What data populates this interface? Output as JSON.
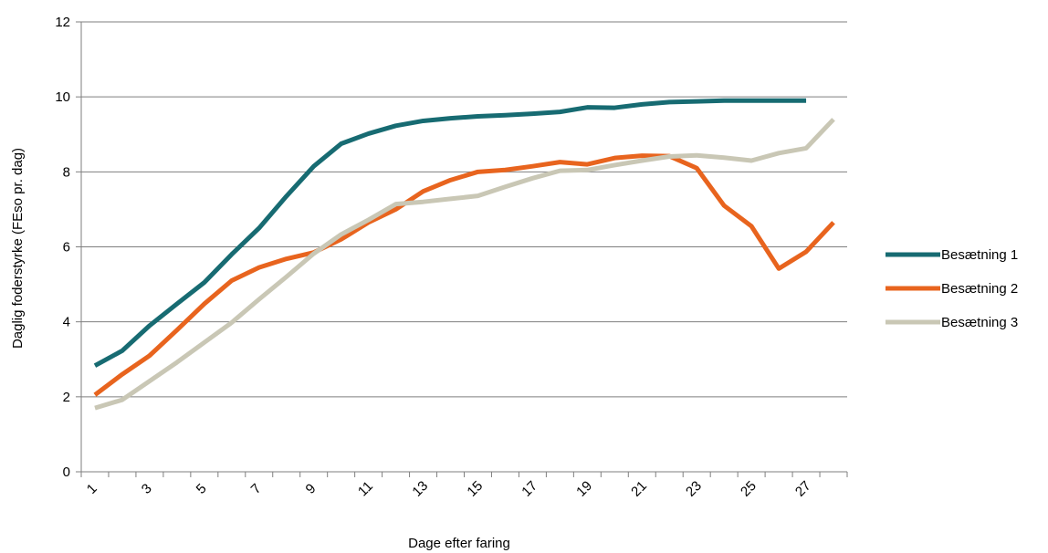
{
  "chart_data": {
    "type": "line",
    "xlabel": "Dage efter faring",
    "ylabel": "Daglig foderstyrke (FEso pr. dag)",
    "ylim": [
      0,
      12
    ],
    "yticks": [
      "0",
      "2",
      "4",
      "6",
      "8",
      "10",
      "12"
    ],
    "x": [
      1,
      2,
      3,
      4,
      5,
      6,
      7,
      8,
      9,
      10,
      11,
      12,
      13,
      14,
      15,
      16,
      17,
      18,
      19,
      20,
      21,
      22,
      23,
      24,
      25,
      26,
      27,
      28
    ],
    "xtick_labels": [
      "1",
      "3",
      "5",
      "7",
      "9",
      "11",
      "13",
      "15",
      "17",
      "19",
      "21",
      "23",
      "25",
      "27"
    ],
    "grid": "horizontal",
    "legend_position": "right",
    "series": [
      {
        "name": "Besætning 1",
        "color": "#176b72",
        "values": [
          2.83,
          3.23,
          3.9,
          4.48,
          5.05,
          5.8,
          6.5,
          7.35,
          8.15,
          8.75,
          9.02,
          9.23,
          9.36,
          9.43,
          9.48,
          9.51,
          9.55,
          9.6,
          9.72,
          9.71,
          9.8,
          9.86,
          9.88,
          9.9,
          9.9,
          9.9,
          9.9,
          null
        ]
      },
      {
        "name": "Besætning 2",
        "color": "#e8641e",
        "values": [
          2.05,
          2.6,
          3.1,
          3.78,
          4.48,
          5.1,
          5.45,
          5.68,
          5.85,
          6.2,
          6.65,
          7.0,
          7.48,
          7.78,
          8.0,
          8.05,
          8.15,
          8.26,
          8.2,
          8.37,
          8.43,
          8.42,
          8.1,
          7.1,
          6.55,
          5.42,
          5.87,
          6.65
        ]
      },
      {
        "name": "Besætning 3",
        "color": "#c9c7b5",
        "values": [
          1.7,
          1.92,
          2.42,
          2.92,
          3.45,
          3.98,
          4.6,
          5.2,
          5.82,
          6.33,
          6.72,
          7.14,
          7.2,
          7.28,
          7.36,
          7.6,
          7.83,
          8.03,
          8.05,
          8.18,
          8.3,
          8.41,
          8.44,
          8.38,
          8.3,
          8.5,
          8.63,
          9.4
        ]
      }
    ]
  }
}
